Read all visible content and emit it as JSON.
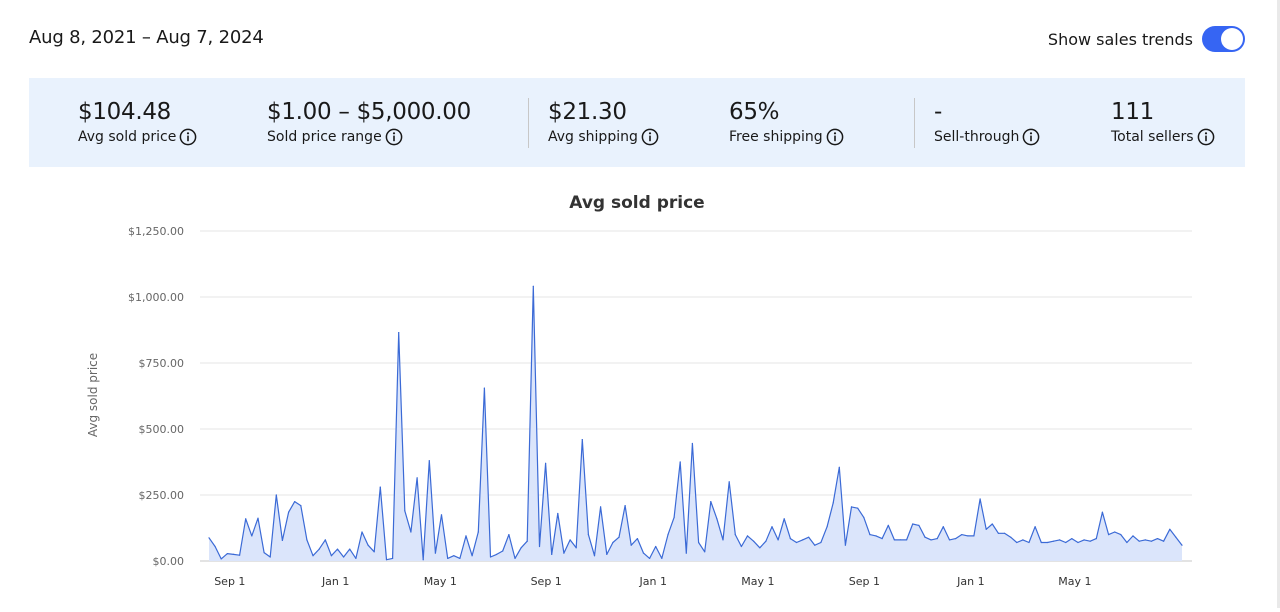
{
  "header": {
    "date_range": "Aug 8, 2021 – Aug 7, 2024",
    "trends_label": "Show sales trends",
    "trends_enabled": true
  },
  "stats": [
    {
      "value": "$104.48",
      "label": "Avg sold price"
    },
    {
      "value": "$1.00 – $5,000.00",
      "label": "Sold price range"
    },
    {
      "value": "$21.30",
      "label": "Avg shipping"
    },
    {
      "value": "65%",
      "label": "Free shipping"
    },
    {
      "value": "-",
      "label": "Sell-through"
    },
    {
      "value": "111",
      "label": "Total sellers"
    }
  ],
  "colors": {
    "accent": "#3665f3",
    "line": "#3b6ad6",
    "fill": "#dbe5fb",
    "stats_bg": "#e9f2fd"
  },
  "chart_data": {
    "type": "area",
    "title": "Avg sold price",
    "ylabel": "Avg sold price",
    "xlabel": "",
    "ylim": [
      0,
      1250
    ],
    "yticks": [
      "$0.00",
      "$250.00",
      "$500.00",
      "$750.00",
      "$1,000.00",
      "$1,250.00"
    ],
    "xticks": [
      {
        "label": "Sep 1",
        "week": 3.4
      },
      {
        "label": "Jan 1",
        "week": 20.7
      },
      {
        "label": "May 1",
        "week": 37.8
      },
      {
        "label": "Sep 1",
        "week": 55.1
      },
      {
        "label": "Jan 1",
        "week": 72.6
      },
      {
        "label": "May 1",
        "week": 89.7
      },
      {
        "label": "Sep 1",
        "week": 107.1
      },
      {
        "label": "Jan 1",
        "week": 124.5
      },
      {
        "label": "May 1",
        "week": 141.5
      }
    ],
    "grid": true,
    "interval": "weekly",
    "series": [
      {
        "values": [
          88,
          55,
          8,
          28,
          25,
          22,
          160,
          95,
          162,
          32,
          15,
          250,
          78,
          185,
          225,
          210,
          80,
          20,
          45,
          80,
          20,
          45,
          15,
          45,
          10,
          110,
          60,
          35,
          280,
          5,
          10,
          865,
          190,
          110,
          315,
          5,
          380,
          30,
          175,
          10,
          20,
          10,
          95,
          20,
          110,
          655,
          15,
          25,
          38,
          100,
          10,
          50,
          75,
          1040,
          55,
          370,
          25,
          180,
          30,
          80,
          50,
          460,
          100,
          20,
          205,
          25,
          70,
          90,
          210,
          60,
          85,
          30,
          10,
          55,
          10,
          100,
          165,
          375,
          30,
          445,
          70,
          35,
          225,
          160,
          80,
          300,
          100,
          55,
          95,
          75,
          50,
          75,
          130,
          80,
          160,
          85,
          70,
          80,
          90,
          60,
          70,
          130,
          220,
          355,
          60,
          205,
          200,
          165,
          100,
          95,
          85,
          135,
          80,
          80,
          80,
          140,
          135,
          90,
          80,
          85,
          130,
          80,
          85,
          100,
          95,
          95,
          235,
          120,
          140,
          105,
          105,
          90,
          70,
          80,
          70,
          130,
          70,
          70,
          75,
          80,
          70,
          85,
          70,
          80,
          75,
          85,
          185,
          100,
          110,
          100,
          70,
          95,
          75,
          80,
          75,
          85,
          75,
          120,
          90,
          60
        ]
      }
    ]
  }
}
